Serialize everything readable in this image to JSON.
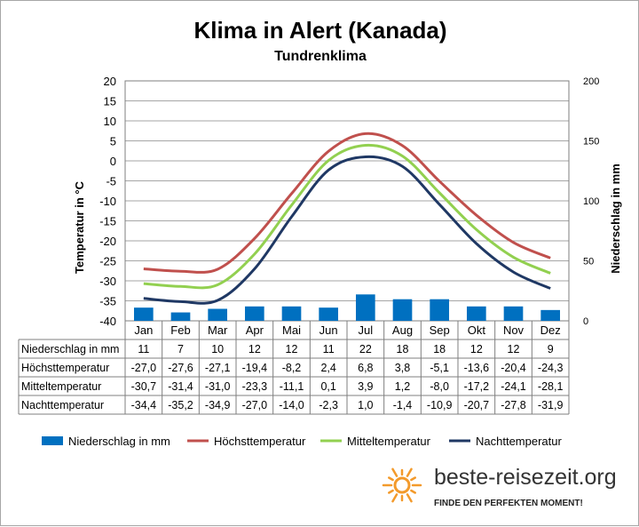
{
  "title": "Klima in Alert (Kanada)",
  "subtitle": "Tundrenklima",
  "logo": {
    "name": "beste-reisezeit.org",
    "tagline": "FINDE DEN PERFEKTEN MOMENT!",
    "icon": "sun-icon",
    "color": "#f39a2b"
  },
  "chart_data": {
    "type": "bar+line",
    "categories": [
      "Jan",
      "Feb",
      "Mar",
      "Apr",
      "Mai",
      "Jun",
      "Jul",
      "Aug",
      "Sep",
      "Okt",
      "Nov",
      "Dez"
    ],
    "y_left": {
      "label": "Temperatur in °C",
      "min": -40,
      "max": 20,
      "ticks": [
        20,
        15,
        10,
        5,
        0,
        -5,
        -10,
        -15,
        -20,
        -25,
        -30,
        -35,
        -40
      ]
    },
    "y_right": {
      "label": "Niederschlag in mm",
      "min": 0,
      "max": 200,
      "ticks": [
        200,
        150,
        100,
        50,
        0
      ]
    },
    "grid": true,
    "legend_position": "bottom",
    "series": [
      {
        "name": "Niederschlag in mm",
        "type": "bar",
        "axis": "right",
        "color": "#0070c0",
        "values": [
          11,
          7,
          10,
          12,
          12,
          11,
          22,
          18,
          18,
          12,
          12,
          9
        ]
      },
      {
        "name": "Höchsttemperatur",
        "type": "line",
        "axis": "left",
        "color": "#c0504d",
        "values": [
          -27.0,
          -27.6,
          -27.1,
          -19.4,
          -8.2,
          2.4,
          6.8,
          3.8,
          -5.1,
          -13.6,
          -20.4,
          -24.3
        ]
      },
      {
        "name": "Mitteltemperatur",
        "type": "line",
        "axis": "left",
        "color": "#92d050",
        "values": [
          -30.7,
          -31.4,
          -31.0,
          -23.3,
          -11.1,
          0.1,
          3.9,
          1.2,
          -8.0,
          -17.2,
          -24.1,
          -28.1
        ]
      },
      {
        "name": "Nachttemperatur",
        "type": "line",
        "axis": "left",
        "color": "#1f3864",
        "values": [
          -34.4,
          -35.2,
          -34.9,
          -27.0,
          -14.0,
          -2.3,
          1.0,
          -1.4,
          -10.9,
          -20.7,
          -27.8,
          -31.9
        ]
      }
    ],
    "table": [
      {
        "label": "Niederschlag in mm",
        "cells": [
          "11",
          "7",
          "10",
          "12",
          "12",
          "11",
          "22",
          "18",
          "18",
          "12",
          "12",
          "9"
        ]
      },
      {
        "label": "Höchsttemperatur",
        "cells": [
          "-27,0",
          "-27,6",
          "-27,1",
          "-19,4",
          "-8,2",
          "2,4",
          "6,8",
          "3,8",
          "-5,1",
          "-13,6",
          "-20,4",
          "-24,3"
        ]
      },
      {
        "label": "Mitteltemperatur",
        "cells": [
          "-30,7",
          "-31,4",
          "-31,0",
          "-23,3",
          "-11,1",
          "0,1",
          "3,9",
          "1,2",
          "-8,0",
          "-17,2",
          "-24,1",
          "-28,1"
        ]
      },
      {
        "label": "Nachttemperatur",
        "cells": [
          "-34,4",
          "-35,2",
          "-34,9",
          "-27,0",
          "-14,0",
          "-2,3",
          "1,0",
          "-1,4",
          "-10,9",
          "-20,7",
          "-27,8",
          "-31,9"
        ]
      }
    ]
  }
}
